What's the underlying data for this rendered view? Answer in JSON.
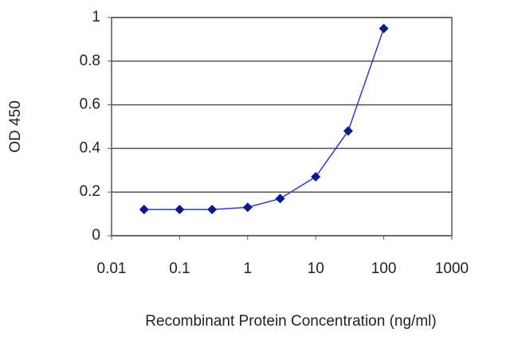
{
  "chart_data": {
    "type": "line",
    "x_label": "Recombinant Protein Concentration (ng/ml)",
    "y_label": "OD 450",
    "x": [
      0.03,
      0.1,
      0.3,
      1,
      3,
      10,
      30,
      100
    ],
    "values": [
      0.12,
      0.12,
      0.12,
      0.13,
      0.17,
      0.27,
      0.48,
      0.95
    ],
    "color": "#2a3fc4",
    "marker_color": "#0a1a8c",
    "xscale": "log",
    "xlim": [
      0.01,
      1000
    ],
    "xticks": [
      0.01,
      0.1,
      1,
      10,
      100,
      1000
    ],
    "ylim": [
      0,
      1
    ],
    "yticks": [
      0,
      0.2,
      0.4,
      0.6,
      0.8,
      1
    ],
    "grid": true
  }
}
